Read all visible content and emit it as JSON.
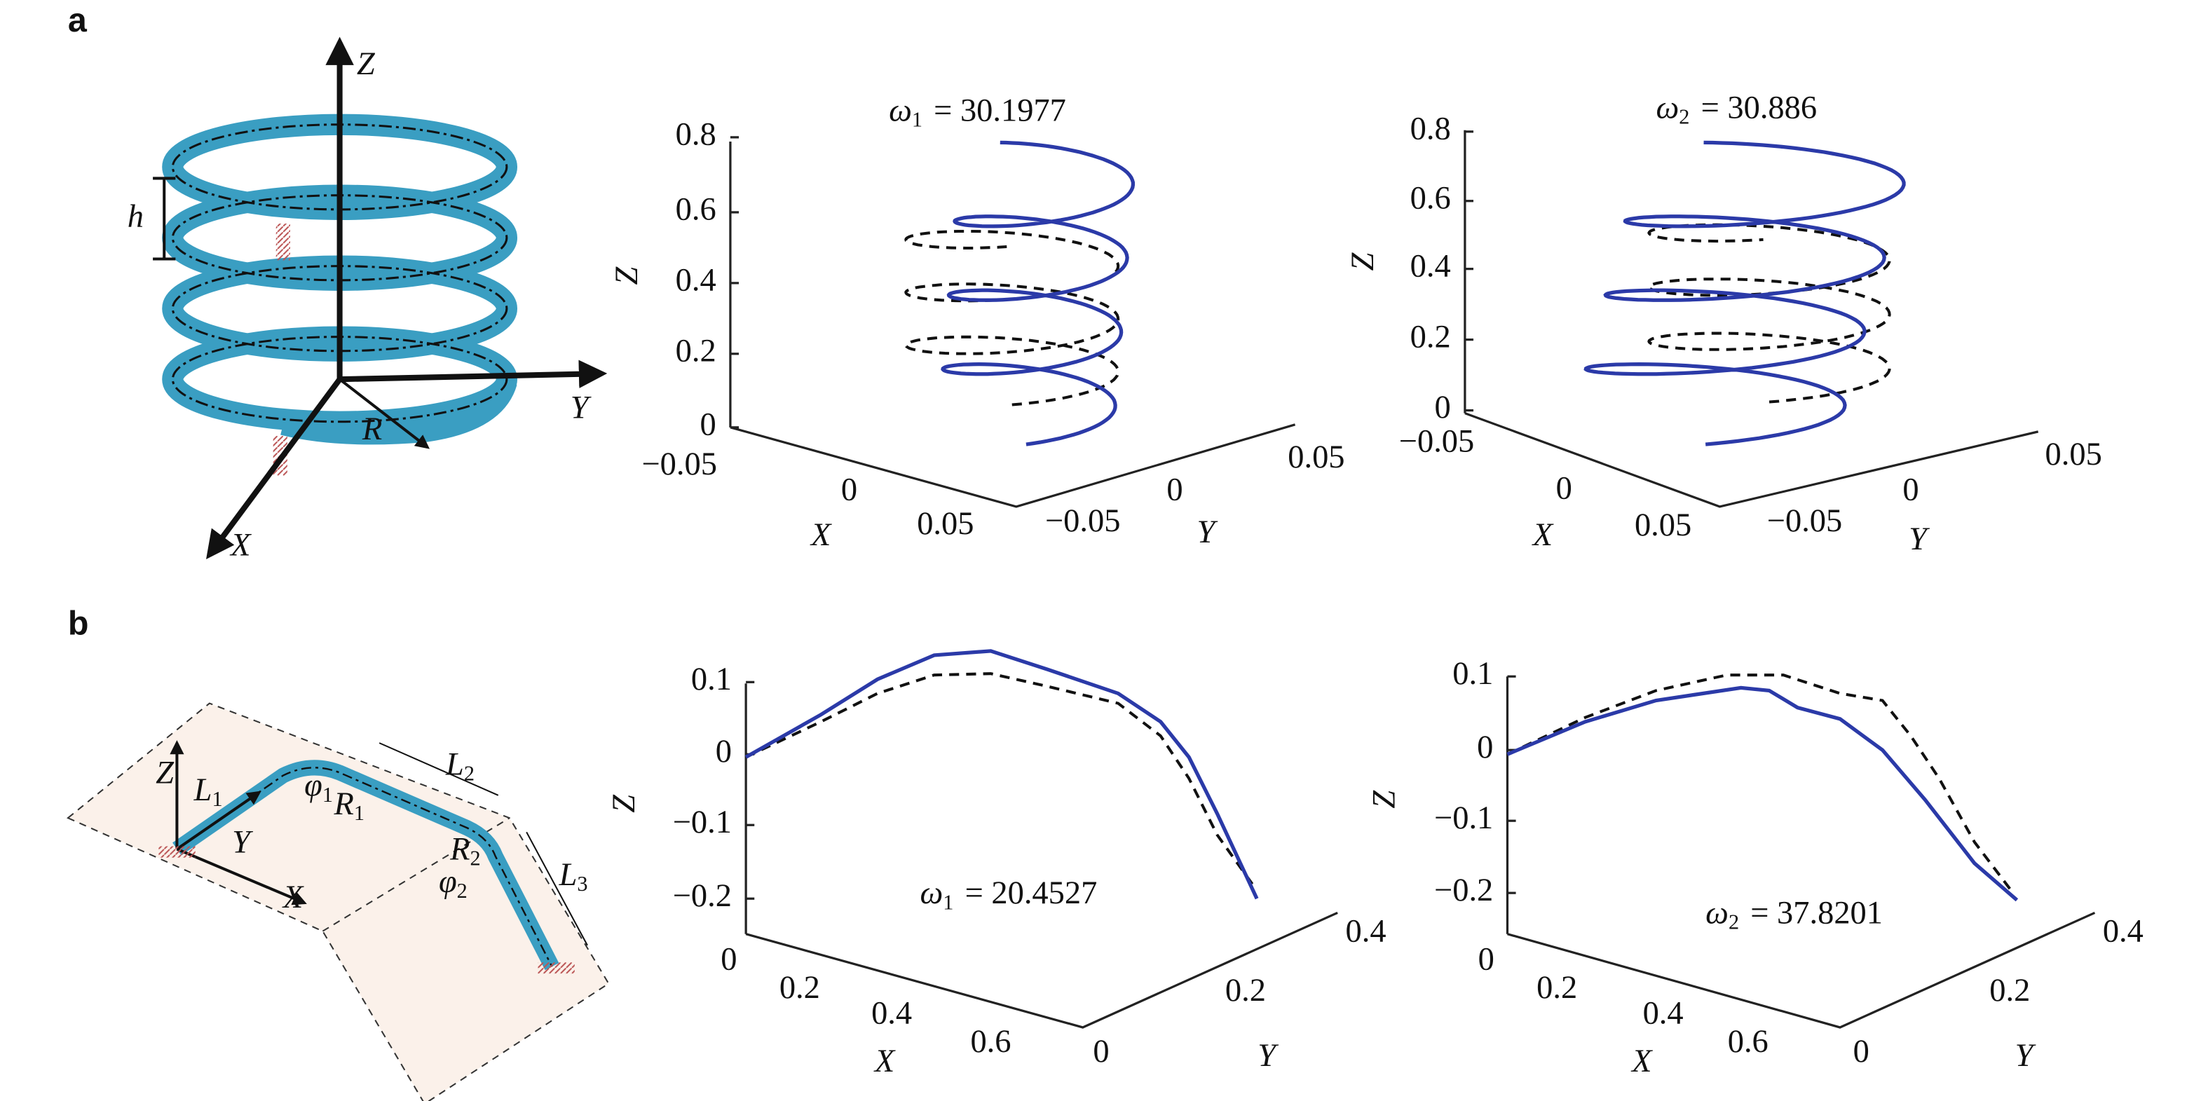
{
  "panels": [
    {
      "label": "a",
      "diagram": {
        "labels": [
          {
            "text": "Z"
          },
          {
            "text": "Y"
          },
          {
            "text": "X"
          },
          {
            "text": "h"
          },
          {
            "text": "R"
          }
        ]
      },
      "plots": [
        {
          "title": {
            "symbol": "ω",
            "sub": "1",
            "rest": "= 30.1977"
          },
          "zticks": [
            "0.8",
            "0.6",
            "0.4",
            "0.2",
            "0"
          ],
          "xticks": [
            "−0.05",
            "0",
            "0.05"
          ],
          "yticks": [
            "−0.05",
            "0",
            "0.05"
          ],
          "xlabel": "X",
          "ylabel": "Y",
          "zlabel": "Z"
        },
        {
          "title": {
            "symbol": "ω",
            "sub": "2",
            "rest": "= 30.886"
          },
          "zticks": [
            "0.8",
            "0.6",
            "0.4",
            "0.2",
            "0"
          ],
          "xticks": [
            "−0.05",
            "0",
            "0.05"
          ],
          "yticks": [
            "−0.05",
            "0",
            "0.05"
          ],
          "xlabel": "X",
          "ylabel": "Y",
          "zlabel": "Z"
        }
      ]
    },
    {
      "label": "b",
      "diagram": {
        "labels": [
          {
            "text": "Z"
          },
          {
            "text": "L",
            "sub": "1"
          },
          {
            "text": "φ",
            "sub": "1"
          },
          {
            "text": "R",
            "sub": "1"
          },
          {
            "text": "L",
            "sub": "2"
          },
          {
            "text": "R",
            "sub": "2"
          },
          {
            "text": "φ",
            "sub": "2"
          },
          {
            "text": "L",
            "sub": "3"
          },
          {
            "text": "Y"
          },
          {
            "text": "X"
          }
        ]
      },
      "plots": [
        {
          "title": {
            "symbol": "ω",
            "sub": "1",
            "rest": "= 20.4527"
          },
          "zticks": [
            "0.1",
            "0",
            "−0.1",
            "−0.2"
          ],
          "xticks": [
            "0",
            "0.2",
            "0.4",
            "0.6"
          ],
          "yticks": [
            "0",
            "0.2",
            "0.4"
          ],
          "xlabel": "X",
          "ylabel": "Y",
          "zlabel": "Z"
        },
        {
          "title": {
            "symbol": "ω",
            "sub": "2",
            "rest": "= 37.8201"
          },
          "zticks": [
            "0.1",
            "0",
            "−0.1",
            "−0.2"
          ],
          "xticks": [
            "0",
            "0.2",
            "0.4",
            "0.6"
          ],
          "yticks": [
            "0",
            "0.2",
            "0.4"
          ],
          "xlabel": "X",
          "ylabel": "Y",
          "zlabel": "Z"
        }
      ]
    }
  ]
}
